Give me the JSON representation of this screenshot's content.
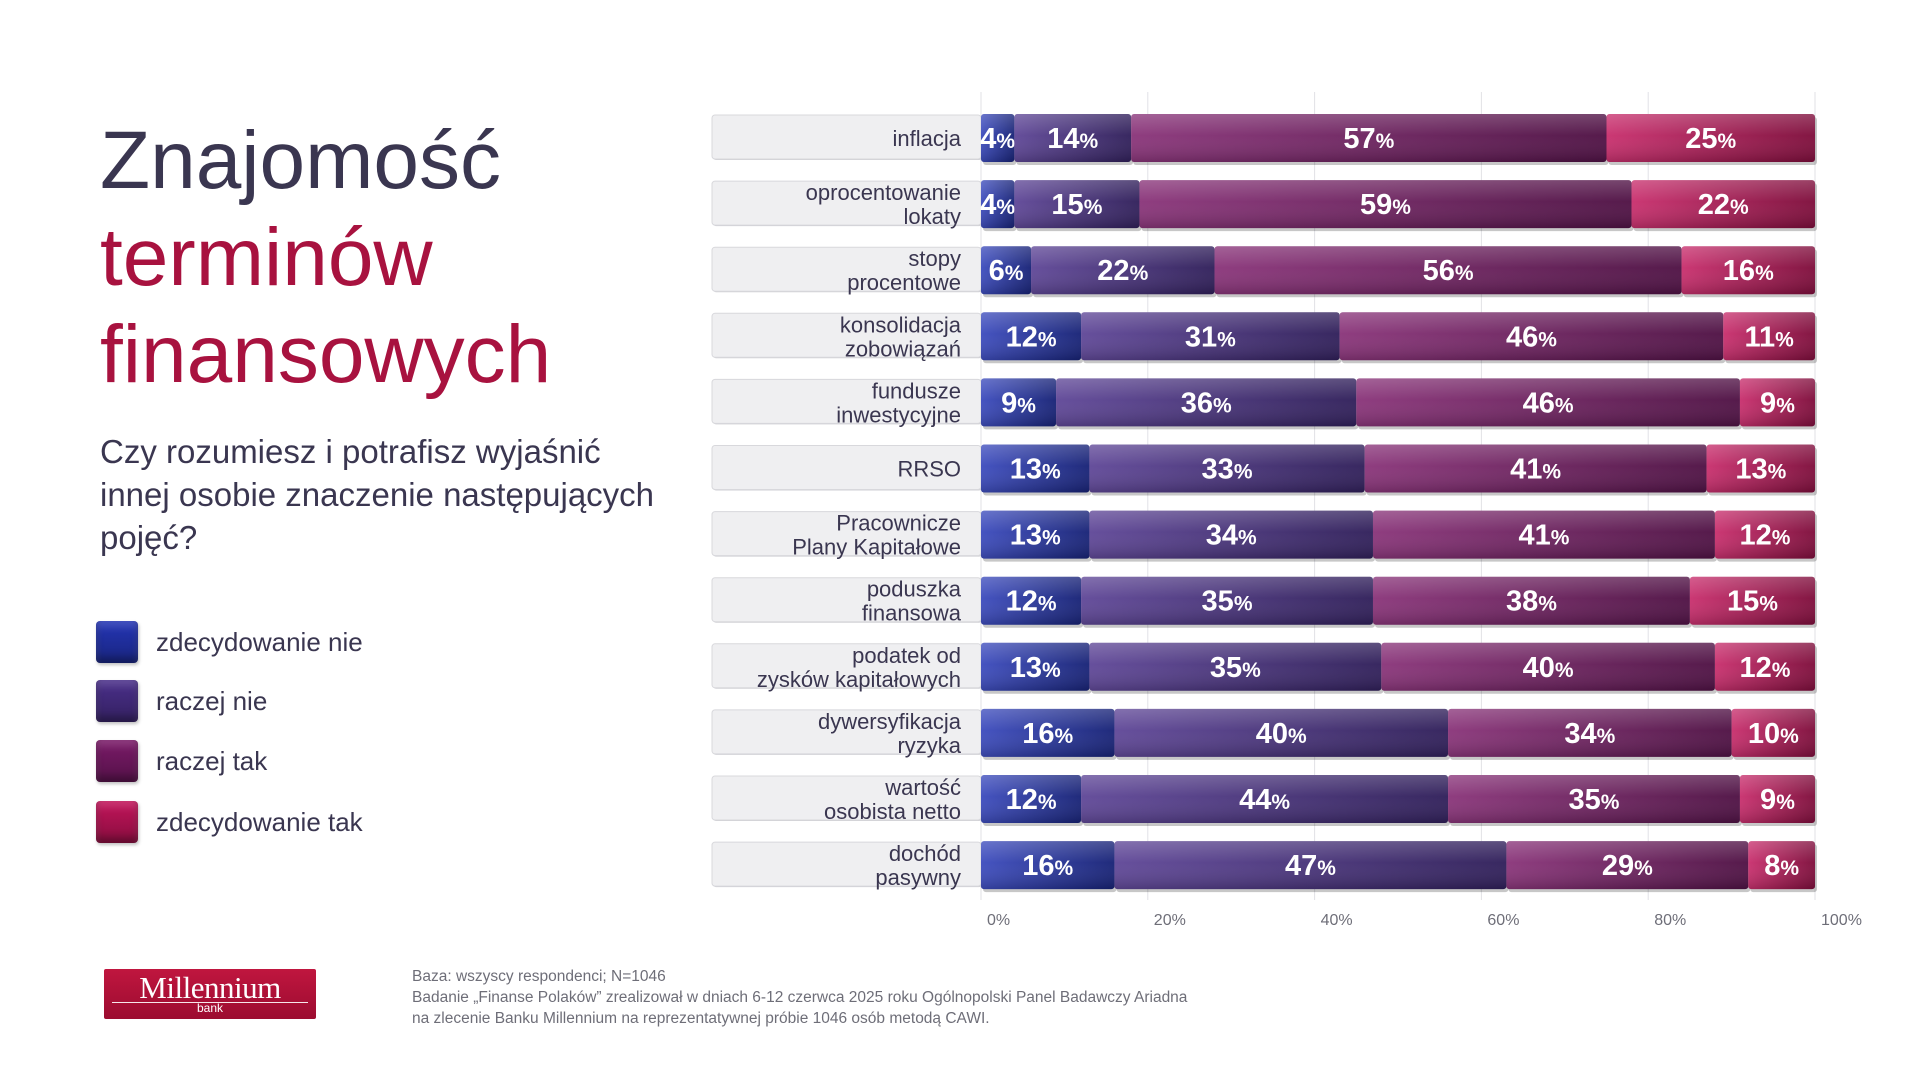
{
  "header": {
    "title_line1": "Znajomość",
    "title_line2": "terminów",
    "title_line3": "finansowych",
    "subtitle": "Czy rozumiesz i potrafisz wyjaśnić innej osobie znaczenie następujących pojęć?"
  },
  "legend": [
    {
      "label": "zdecydowanie nie",
      "color": "#2435b5"
    },
    {
      "label": "raczej nie",
      "color": "#4a2f8a"
    },
    {
      "label": "raczej tak",
      "color": "#7a1a68"
    },
    {
      "label": "zdecydowanie tak",
      "color": "#c2145a"
    }
  ],
  "footnote": {
    "line1": "Baza: wszyscy respondenci; N=1046",
    "line2": "Badanie „Finanse Polaków” zrealizował w dniach 6-12 czerwca 2025 roku Ogólnopolski Panel Badawczy Ariadna",
    "line3": "na zlecenie Banku Millennium na reprezentatywnej próbie 1046 osób metodą CAWI."
  },
  "logo": {
    "name": "Millennium",
    "sub": "bank"
  },
  "chart_data": {
    "type": "bar",
    "orientation": "horizontal",
    "stacked": true,
    "categories": [
      [
        "inflacja"
      ],
      [
        "oprocentowanie",
        "lokaty"
      ],
      [
        "stopy",
        "procentowe"
      ],
      [
        "konsolidacja",
        "zobowiązań"
      ],
      [
        "fundusze",
        "inwestycyjne"
      ],
      [
        "RRSO"
      ],
      [
        "Pracownicze",
        "Plany Kapitałowe"
      ],
      [
        "poduszka",
        "finansowa"
      ],
      [
        "podatek od",
        "zysków kapitałowych"
      ],
      [
        "dywersyfikacja",
        "ryzyka"
      ],
      [
        "wartość",
        "osobista netto"
      ],
      [
        "dochód",
        "pasywny"
      ]
    ],
    "series": [
      {
        "name": "zdecydowanie nie",
        "color": "#2435b5",
        "values": [
          4,
          4,
          6,
          12,
          9,
          13,
          13,
          12,
          13,
          16,
          12,
          16
        ]
      },
      {
        "name": "raczej nie",
        "color": "#4a2f8a",
        "values": [
          14,
          15,
          22,
          31,
          36,
          33,
          34,
          35,
          35,
          40,
          44,
          47
        ]
      },
      {
        "name": "raczej tak",
        "color": "#7a1a68",
        "values": [
          57,
          59,
          56,
          46,
          46,
          41,
          41,
          38,
          40,
          34,
          35,
          29
        ]
      },
      {
        "name": "zdecydowanie tak",
        "color": "#c2145a",
        "values": [
          25,
          22,
          16,
          11,
          9,
          13,
          12,
          15,
          12,
          10,
          9,
          8
        ]
      }
    ],
    "value_suffix": "%",
    "xlim": [
      0,
      100
    ],
    "xticks": [
      0,
      20,
      40,
      60,
      80,
      100
    ],
    "xtick_labels": [
      "0%",
      "20%",
      "40%",
      "60%",
      "80%",
      "100%"
    ],
    "grid": true
  }
}
